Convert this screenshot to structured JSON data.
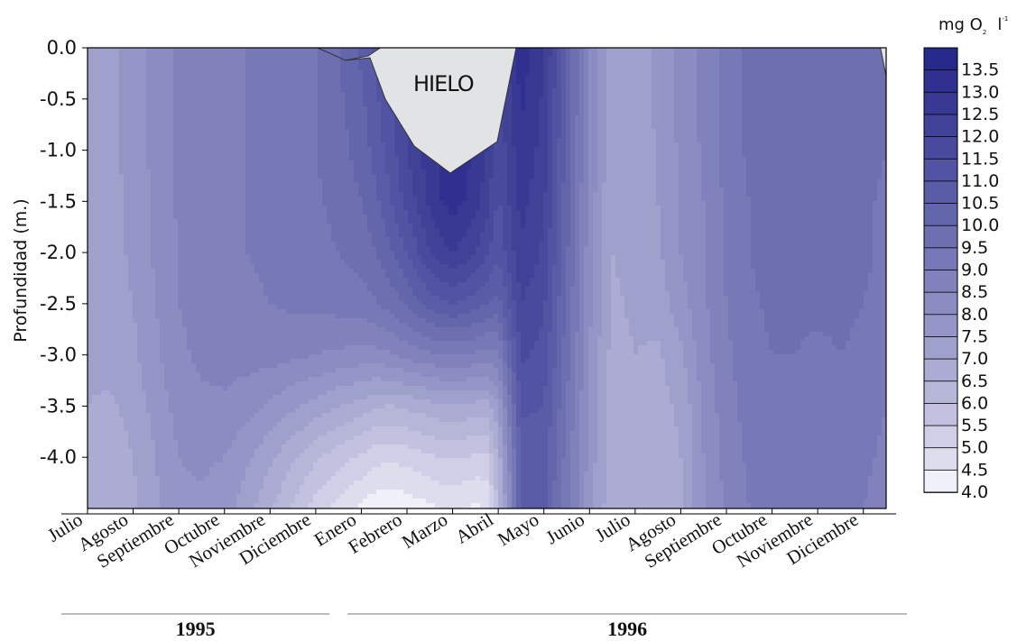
{
  "chart_data": {
    "type": "heatmap",
    "ylabel": "Profundidad (m.)",
    "y_ticks": [
      "0.0",
      "-0.5",
      "-1.0",
      "-1.5",
      "-2.0",
      "-2.5",
      "-3.0",
      "-3.5",
      "-4.0"
    ],
    "ylim": [
      -4.5,
      0
    ],
    "x_months": [
      "Julio",
      "Agosto",
      "Septiembre",
      "Octubre",
      "Noviembre",
      "Diciembre",
      "Enero",
      "Febrero",
      "Marzo",
      "Abril",
      "Mayo",
      "Junio",
      "Julio",
      "Agosto",
      "Septiembre",
      "Octubre",
      "Noviembre",
      "Diciembre"
    ],
    "years": [
      {
        "label": "1995",
        "months": 6
      },
      {
        "label": "1996",
        "months": 12
      }
    ],
    "colorbar": {
      "title_main": "mg O",
      "title_sub": "2",
      "title_unit": "l",
      "title_sup": "-1",
      "levels": [
        "13.5",
        "13.0",
        "12.5",
        "12.0",
        "11.5",
        "11.0",
        "10.5",
        "10.0",
        "9.5",
        "9.0",
        "8.5",
        "8.0",
        "7.5",
        "7.0",
        "6.5",
        "6.0",
        "5.5",
        "5.0",
        "4.5",
        "4.0"
      ],
      "range": [
        4.0,
        14.0
      ],
      "step": 0.5
    },
    "depths": [
      0,
      -0.5,
      -1.0,
      -1.5,
      -2.0,
      -2.5,
      -3.0,
      -3.5,
      -4.0,
      -4.5
    ],
    "times": [
      0,
      0.5,
      1,
      1.5,
      2,
      2.5,
      3,
      3.5,
      4,
      4.5,
      5,
      5.5,
      6,
      6.25,
      6.5,
      6.75,
      7,
      7.25,
      7.5,
      7.75,
      8,
      8.25,
      8.5,
      8.75,
      9,
      9.5,
      10,
      10.5,
      11,
      11.5,
      12,
      12.5,
      13,
      13.5,
      14,
      14.5,
      15,
      15.5,
      16,
      16.5,
      17,
      17.5
    ],
    "oxygen": [
      [
        7.3,
        7.4,
        7.7,
        8.2,
        8.6,
        8.8,
        8.9,
        9.0,
        9.1,
        9.3,
        9.5,
        10.0,
        10.6,
        11.0,
        11.4,
        11.8,
        12.2,
        12.6,
        13.0,
        13.3,
        13.5,
        13.4,
        13.1,
        12.7,
        12.0,
        13.3,
        12.6,
        10.5,
        8.5,
        7.1,
        7.3,
        7.6,
        8.2,
        8.6,
        9.2,
        9.6,
        9.8,
        9.8,
        9.8,
        9.8,
        9.7,
        9.5
      ],
      [
        7.3,
        7.4,
        7.7,
        8.2,
        8.6,
        8.8,
        8.9,
        9.0,
        9.1,
        9.3,
        9.5,
        9.9,
        10.4,
        10.8,
        11.2,
        11.7,
        12.1,
        12.5,
        12.9,
        13.2,
        13.4,
        13.3,
        13.0,
        12.6,
        11.8,
        13.1,
        12.4,
        10.4,
        8.5,
        7.1,
        7.3,
        7.6,
        8.2,
        8.6,
        9.2,
        9.6,
        9.8,
        9.8,
        9.8,
        9.8,
        9.7,
        9.5
      ],
      [
        7.3,
        7.4,
        7.7,
        8.2,
        8.6,
        8.8,
        8.9,
        9.0,
        9.1,
        9.3,
        9.5,
        9.8,
        10.2,
        10.6,
        11.0,
        11.5,
        12.0,
        12.4,
        12.8,
        13.1,
        13.3,
        13.2,
        12.9,
        12.5,
        11.6,
        12.9,
        12.3,
        10.3,
        8.4,
        7.1,
        7.3,
        7.5,
        8.1,
        8.6,
        9.2,
        9.6,
        9.7,
        9.5,
        9.8,
        9.8,
        9.7,
        9.5
      ],
      [
        7.2,
        7.3,
        7.6,
        8.1,
        8.6,
        8.8,
        8.9,
        9.0,
        9.1,
        9.3,
        9.4,
        9.7,
        10.0,
        10.3,
        10.7,
        11.2,
        11.7,
        12.1,
        12.6,
        13.0,
        13.2,
        13.0,
        12.7,
        12.2,
        11.4,
        12.7,
        12.1,
        10.2,
        8.3,
        7.0,
        7.2,
        7.5,
        8.1,
        8.5,
        9.1,
        9.5,
        9.7,
        9.7,
        9.7,
        9.7,
        9.6,
        9.4
      ],
      [
        7.2,
        7.3,
        7.6,
        8.1,
        8.5,
        8.8,
        8.9,
        9.0,
        9.1,
        9.2,
        9.3,
        9.5,
        9.7,
        9.9,
        10.2,
        10.6,
        11.0,
        11.5,
        12.0,
        12.3,
        12.5,
        12.3,
        12.0,
        11.6,
        11.1,
        12.4,
        11.9,
        10.1,
        8.2,
        7.0,
        7.2,
        7.4,
        8.0,
        8.5,
        9.1,
        9.5,
        9.7,
        9.7,
        9.7,
        9.7,
        9.6,
        9.4
      ],
      [
        7.2,
        7.3,
        7.5,
        8.0,
        8.5,
        8.7,
        8.8,
        8.9,
        9.0,
        9.1,
        9.1,
        9.2,
        9.3,
        9.4,
        9.6,
        9.8,
        10.1,
        10.4,
        10.7,
        10.9,
        11.0,
        10.9,
        10.7,
        10.5,
        10.3,
        12.0,
        11.6,
        9.9,
        8.1,
        6.9,
        7.1,
        7.2,
        7.8,
        8.4,
        9.0,
        9.4,
        9.6,
        9.6,
        9.6,
        9.6,
        9.5,
        9.3
      ],
      [
        7.1,
        7.2,
        7.4,
        7.9,
        8.4,
        8.6,
        8.7,
        8.7,
        8.7,
        8.6,
        8.5,
        8.4,
        8.3,
        8.3,
        8.4,
        8.5,
        8.7,
        8.8,
        8.9,
        9.0,
        9.0,
        9.0,
        8.9,
        8.8,
        8.9,
        11.6,
        11.3,
        9.7,
        8.0,
        6.8,
        7.0,
        6.9,
        7.4,
        8.3,
        8.9,
        9.3,
        9.5,
        9.5,
        9.4,
        9.5,
        9.4,
        9.2
      ],
      [
        7.0,
        6.9,
        7.2,
        7.7,
        8.2,
        8.4,
        8.4,
        8.2,
        7.9,
        7.6,
        7.3,
        7.0,
        6.8,
        6.6,
        6.5,
        6.5,
        6.6,
        6.7,
        6.8,
        6.9,
        6.9,
        6.9,
        6.8,
        6.8,
        7.5,
        11.1,
        11.0,
        9.5,
        7.9,
        6.7,
        6.9,
        6.8,
        7.1,
        8.1,
        8.8,
        9.2,
        9.4,
        9.4,
        9.2,
        9.4,
        9.2,
        9.0
      ],
      [
        6.9,
        6.7,
        7.0,
        7.5,
        8.0,
        8.1,
        8.0,
        7.6,
        7.1,
        6.6,
        6.1,
        5.7,
        5.4,
        5.2,
        5.1,
        5.1,
        5.2,
        5.3,
        5.4,
        5.5,
        5.5,
        5.5,
        5.4,
        5.4,
        6.6,
        10.7,
        10.7,
        9.3,
        7.8,
        6.6,
        6.8,
        6.7,
        7.0,
        8.0,
        8.7,
        9.1,
        9.3,
        9.3,
        9.1,
        9.3,
        9.1,
        8.9
      ],
      [
        6.8,
        6.6,
        6.9,
        7.4,
        7.9,
        7.9,
        7.7,
        7.2,
        6.6,
        5.9,
        5.3,
        4.8,
        4.4,
        4.2,
        4.1,
        4.1,
        4.2,
        4.3,
        4.4,
        4.5,
        4.5,
        4.5,
        4.4,
        4.5,
        6.1,
        10.5,
        10.6,
        9.2,
        7.7,
        6.6,
        6.8,
        6.7,
        6.9,
        7.9,
        8.6,
        9.0,
        9.2,
        9.2,
        9.0,
        9.2,
        9.0,
        8.8
      ]
    ],
    "annotation": "HIELO"
  }
}
